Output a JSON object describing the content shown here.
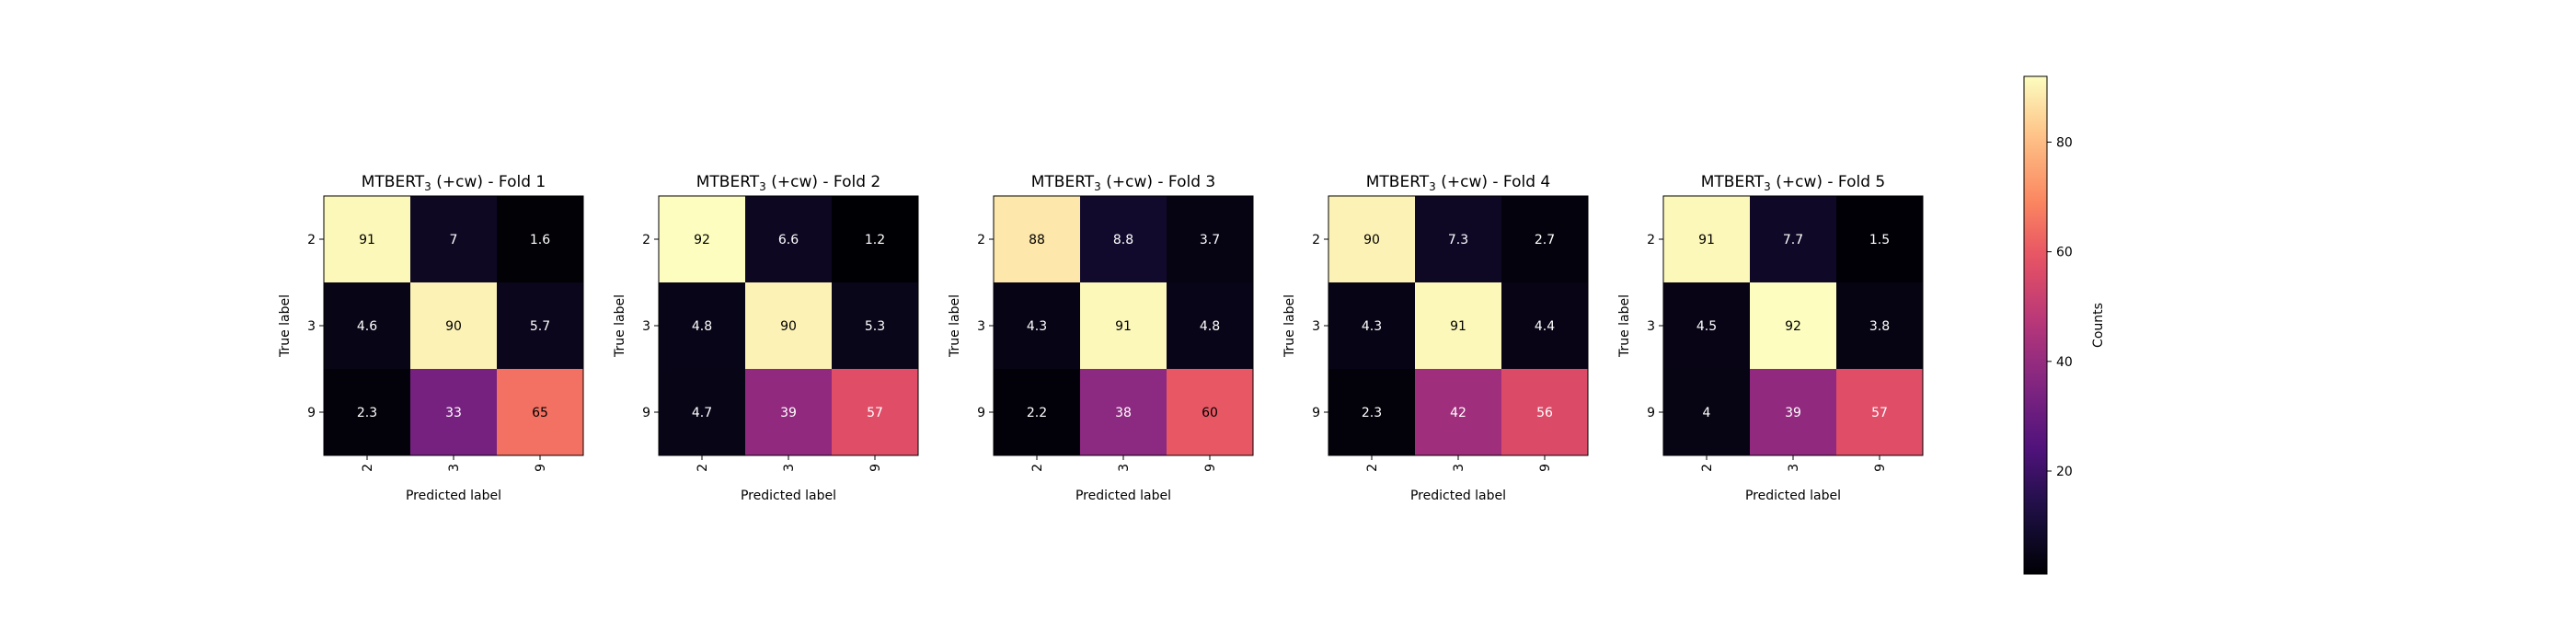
{
  "colors": {
    "colormap": "magma",
    "dark_text": "#000000",
    "light_text": "#ffffff"
  },
  "chart_data": [
    {
      "type": "heatmap",
      "title": "MTBERT",
      "title_subscript": "3",
      "title_suffix": " (+cw) - Fold 1",
      "xlabel": "Predicted label",
      "ylabel": "True label",
      "x_categories": [
        "2",
        "3",
        "9"
      ],
      "y_categories": [
        "2",
        "3",
        "9"
      ],
      "values": [
        [
          91,
          7,
          1.6
        ],
        [
          4.6,
          90,
          5.7
        ],
        [
          2.3,
          33,
          65
        ]
      ]
    },
    {
      "type": "heatmap",
      "title": "MTBERT",
      "title_subscript": "3",
      "title_suffix": " (+cw) - Fold 2",
      "xlabel": "Predicted label",
      "ylabel": "True label",
      "x_categories": [
        "2",
        "3",
        "9"
      ],
      "y_categories": [
        "2",
        "3",
        "9"
      ],
      "values": [
        [
          92,
          6.6,
          1.2
        ],
        [
          4.8,
          90,
          5.3
        ],
        [
          4.7,
          39,
          57
        ]
      ]
    },
    {
      "type": "heatmap",
      "title": "MTBERT",
      "title_subscript": "3",
      "title_suffix": " (+cw) - Fold 3",
      "xlabel": "Predicted label",
      "ylabel": "True label",
      "x_categories": [
        "2",
        "3",
        "9"
      ],
      "y_categories": [
        "2",
        "3",
        "9"
      ],
      "values": [
        [
          88,
          8.8,
          3.7
        ],
        [
          4.3,
          91,
          4.8
        ],
        [
          2.2,
          38,
          60
        ]
      ]
    },
    {
      "type": "heatmap",
      "title": "MTBERT",
      "title_subscript": "3",
      "title_suffix": " (+cw) - Fold 4",
      "xlabel": "Predicted label",
      "ylabel": "True label",
      "x_categories": [
        "2",
        "3",
        "9"
      ],
      "y_categories": [
        "2",
        "3",
        "9"
      ],
      "values": [
        [
          90,
          7.3,
          2.7
        ],
        [
          4.3,
          91,
          4.4
        ],
        [
          2.3,
          42,
          56
        ]
      ]
    },
    {
      "type": "heatmap",
      "title": "MTBERT",
      "title_subscript": "3",
      "title_suffix": " (+cw) - Fold 5",
      "xlabel": "Predicted label",
      "ylabel": "True label",
      "x_categories": [
        "2",
        "3",
        "9"
      ],
      "y_categories": [
        "2",
        "3",
        "9"
      ],
      "values": [
        [
          91,
          7.7,
          1.5
        ],
        [
          4.5,
          92,
          3.8
        ],
        [
          4,
          39,
          57
        ]
      ]
    }
  ],
  "colorbar": {
    "label": "Counts",
    "vmin": 1.2,
    "vmax": 92,
    "ticks": [
      20,
      40,
      60,
      80
    ]
  }
}
